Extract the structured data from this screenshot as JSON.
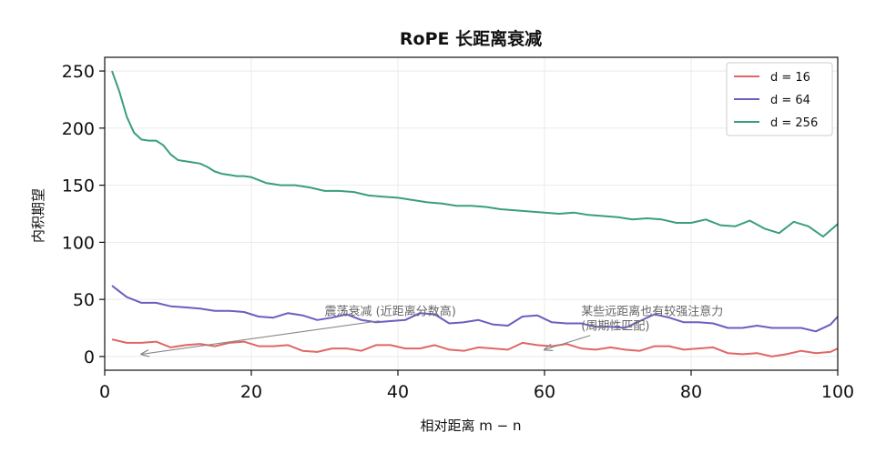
{
  "chart_data": {
    "type": "line",
    "title": "RoPE 长距离衰减",
    "xlabel": "相对距离 m − n",
    "ylabel": "内积期望",
    "xlim": [
      0,
      100
    ],
    "ylim": [
      -12,
      262
    ],
    "xticks": [
      0,
      20,
      40,
      60,
      80,
      100
    ],
    "yticks": [
      0,
      50,
      100,
      150,
      200,
      250
    ],
    "grid": true,
    "legend_position": "top-right",
    "series": [
      {
        "name": "d = 16",
        "color": "#e06666",
        "x": [
          1,
          3,
          5,
          7,
          9,
          11,
          13,
          15,
          17,
          19,
          21,
          23,
          25,
          27,
          29,
          31,
          33,
          35,
          37,
          39,
          41,
          43,
          45,
          47,
          49,
          51,
          53,
          55,
          57,
          59,
          61,
          63,
          65,
          67,
          69,
          71,
          73,
          75,
          77,
          79,
          81,
          83,
          85,
          87,
          89,
          91,
          93,
          95,
          97,
          99,
          100
        ],
        "y": [
          15,
          12,
          12,
          13,
          8,
          10,
          11,
          9,
          12,
          13,
          9,
          9,
          10,
          5,
          4,
          7,
          7,
          5,
          10,
          10,
          7,
          7,
          10,
          6,
          5,
          8,
          7,
          6,
          12,
          10,
          9,
          11,
          7,
          6,
          8,
          6,
          5,
          9,
          9,
          6,
          7,
          8,
          3,
          2,
          3,
          0,
          2,
          5,
          3,
          4,
          7
        ]
      },
      {
        "name": "d = 64",
        "color": "#6a5fbf",
        "x": [
          1,
          3,
          5,
          7,
          9,
          11,
          13,
          15,
          17,
          19,
          21,
          23,
          25,
          27,
          29,
          31,
          33,
          35,
          37,
          39,
          41,
          43,
          45,
          47,
          49,
          51,
          53,
          55,
          57,
          59,
          61,
          63,
          65,
          67,
          69,
          71,
          73,
          75,
          77,
          79,
          81,
          83,
          85,
          87,
          89,
          91,
          93,
          95,
          97,
          99,
          100
        ],
        "y": [
          62,
          52,
          47,
          47,
          44,
          43,
          42,
          40,
          40,
          39,
          35,
          34,
          38,
          36,
          32,
          34,
          37,
          32,
          30,
          31,
          32,
          38,
          37,
          29,
          30,
          32,
          28,
          27,
          35,
          36,
          30,
          29,
          29,
          26,
          26,
          25,
          31,
          37,
          34,
          30,
          30,
          29,
          25,
          25,
          27,
          25,
          25,
          25,
          22,
          28,
          35
        ]
      },
      {
        "name": "d = 256",
        "color": "#3a9e7e",
        "x": [
          1,
          2,
          3,
          4,
          5,
          6,
          7,
          8,
          9,
          10,
          11,
          12,
          13,
          14,
          15,
          16,
          17,
          18,
          19,
          20,
          22,
          24,
          26,
          28,
          30,
          32,
          34,
          36,
          38,
          40,
          42,
          44,
          46,
          48,
          50,
          52,
          54,
          56,
          58,
          60,
          62,
          64,
          66,
          68,
          70,
          72,
          74,
          76,
          78,
          80,
          82,
          84,
          86,
          88,
          90,
          92,
          94,
          96,
          98,
          100
        ],
        "y": [
          250,
          232,
          210,
          196,
          190,
          189,
          189,
          185,
          177,
          172,
          171,
          170,
          169,
          166,
          162,
          160,
          159,
          158,
          158,
          157,
          152,
          150,
          150,
          148,
          145,
          145,
          144,
          141,
          140,
          139,
          137,
          135,
          134,
          132,
          132,
          131,
          129,
          128,
          127,
          126,
          125,
          126,
          124,
          123,
          122,
          120,
          121,
          120,
          117,
          117,
          120,
          115,
          114,
          119,
          112,
          108,
          118,
          114,
          105,
          116
        ]
      }
    ],
    "annotations": [
      {
        "text": "震荡衰减 (近距离分数高)",
        "text_at": [
          30,
          36
        ],
        "point_to": [
          5,
          2
        ]
      },
      {
        "text": "某些远距离也有较强注意力\n(周期性匹配)",
        "text_at": [
          65,
          36
        ],
        "point_to": [
          60,
          6
        ]
      }
    ]
  }
}
